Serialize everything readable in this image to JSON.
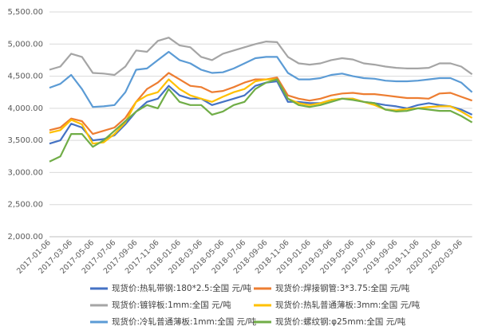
{
  "chart_data": {
    "type": "line",
    "categories": [
      "2017-01-06",
      null,
      "2017-03-06",
      null,
      "2017-05-06",
      null,
      "2017-07-06",
      null,
      "2017-09-06",
      null,
      "2017-11-06",
      null,
      "2018-01-06",
      null,
      "2018-03-06",
      null,
      "2018-05-06",
      null,
      "2018-07-06",
      null,
      "2018-09-06",
      null,
      "2018-11-06",
      null,
      "2019-01-06",
      null,
      "2019-03-06",
      null,
      "2019-05-06",
      null,
      "2019-07-06",
      null,
      "2019-09-06",
      null,
      "2019-11-06",
      null,
      "2020-01-06",
      null,
      "2020-03-06",
      null
    ],
    "ylim": [
      2000,
      5500
    ],
    "yticks": [
      {
        "value": 2000,
        "label": "2,000.00"
      },
      {
        "value": 2500,
        "label": "2,500.00"
      },
      {
        "value": 3000,
        "label": "3,000.00"
      },
      {
        "value": 3500,
        "label": "3,500.00"
      },
      {
        "value": 4000,
        "label": "4,000.00"
      },
      {
        "value": 4500,
        "label": "4,500.00"
      },
      {
        "value": 5000,
        "label": "5,000.00"
      },
      {
        "value": 5500,
        "label": "5,500.00"
      }
    ],
    "grid": true,
    "legend": "bottom",
    "series": [
      {
        "name": "现货价:热轧带钢:180*2.5:全国 元/吨",
        "color": "#4472c4",
        "values": [
          3450,
          3500,
          3760,
          3700,
          3500,
          3520,
          3580,
          3750,
          3950,
          4100,
          4150,
          4350,
          4200,
          4150,
          4150,
          4050,
          4100,
          4150,
          4200,
          4350,
          4400,
          4420,
          4100,
          4100,
          4080,
          4080,
          4130,
          4150,
          4150,
          4100,
          4080,
          4050,
          4030,
          4000,
          4050,
          4080,
          4050,
          4030,
          3980,
          3900
        ]
      },
      {
        "name": "现货价:焊接钢管:3*3.75:全国 元/吨",
        "color": "#ed7d31",
        "values": [
          3660,
          3700,
          3840,
          3800,
          3600,
          3650,
          3700,
          3850,
          4100,
          4300,
          4400,
          4550,
          4450,
          4350,
          4330,
          4250,
          4270,
          4330,
          4400,
          4450,
          4450,
          4480,
          4200,
          4150,
          4120,
          4150,
          4200,
          4230,
          4240,
          4220,
          4220,
          4200,
          4180,
          4160,
          4160,
          4150,
          4230,
          4240,
          4180,
          4120
        ]
      },
      {
        "name": "现货价:镀锌板:1mm:全国 元/吨",
        "color": "#a5a5a5",
        "values": [
          4600,
          4650,
          4850,
          4800,
          4550,
          4540,
          4520,
          4650,
          4900,
          4880,
          5050,
          5100,
          4980,
          4950,
          4800,
          4750,
          4850,
          4900,
          4950,
          5000,
          5040,
          5030,
          4800,
          4700,
          4680,
          4700,
          4750,
          4780,
          4760,
          4700,
          4680,
          4650,
          4630,
          4620,
          4620,
          4630,
          4700,
          4700,
          4650,
          4530
        ]
      },
      {
        "name": "现货价:热轧普通薄板:3mm:全国 元/吨",
        "color": "#ffc000",
        "values": [
          3620,
          3660,
          3820,
          3750,
          3450,
          3470,
          3600,
          3780,
          4100,
          4200,
          4250,
          4450,
          4300,
          4200,
          4150,
          4100,
          4180,
          4250,
          4300,
          4420,
          4450,
          4450,
          4150,
          4080,
          4050,
          4080,
          4130,
          4150,
          4150,
          4100,
          4050,
          3980,
          3970,
          3990,
          4000,
          4020,
          4030,
          4030,
          3950,
          3850
        ]
      },
      {
        "name": "现货价:冷轧普通薄板:1mm:全国 元/吨",
        "color": "#5b9bd5",
        "values": [
          4320,
          4380,
          4520,
          4300,
          4020,
          4030,
          4050,
          4250,
          4600,
          4620,
          4750,
          4880,
          4750,
          4700,
          4600,
          4550,
          4560,
          4620,
          4700,
          4780,
          4800,
          4800,
          4550,
          4450,
          4450,
          4470,
          4520,
          4540,
          4500,
          4470,
          4460,
          4430,
          4420,
          4420,
          4430,
          4450,
          4470,
          4470,
          4400,
          4250
        ]
      },
      {
        "name": "现货价:螺纹钢:φ25mm:全国 元/吨",
        "color": "#70ad47",
        "values": [
          3170,
          3250,
          3600,
          3600,
          3400,
          3500,
          3650,
          3800,
          3950,
          4050,
          4000,
          4300,
          4100,
          4050,
          4050,
          3900,
          3950,
          4050,
          4100,
          4300,
          4400,
          4450,
          4150,
          4050,
          4020,
          4050,
          4100,
          4150,
          4130,
          4100,
          4080,
          3980,
          3950,
          3960,
          4000,
          3980,
          3960,
          3960,
          3880,
          3780
        ]
      }
    ]
  }
}
